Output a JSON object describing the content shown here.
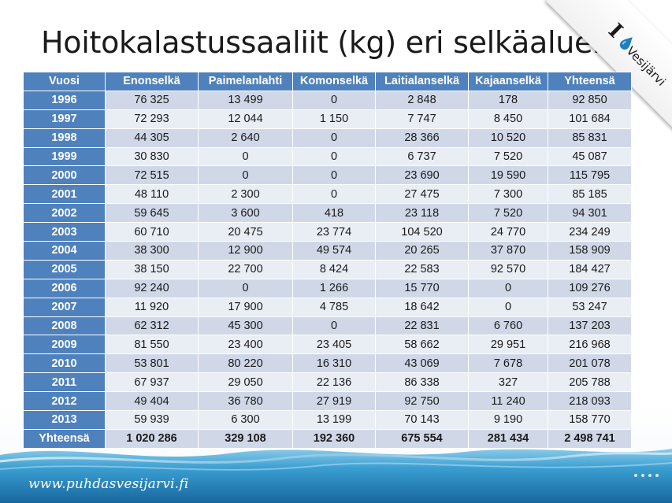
{
  "title": "Hoitokalastussaaliit (kg) eri selkäalueilla",
  "logo": {
    "letter": "I",
    "text": "Vesijärvi",
    "icon": "water-drop-heart-icon"
  },
  "table": {
    "headers": [
      "Vuosi",
      "Enonselkä",
      "Paimelanlahti",
      "Komonselkä",
      "Laitialanselkä",
      "Kajaanselkä",
      "Yhteensä"
    ],
    "rows": [
      {
        "year": "1996",
        "values": [
          "76 325",
          "13 499",
          "0",
          "2 848",
          "178",
          "92 850"
        ]
      },
      {
        "year": "1997",
        "values": [
          "72 293",
          "12 044",
          "1 150",
          "7 747",
          "8 450",
          "101 684"
        ]
      },
      {
        "year": "1998",
        "values": [
          "44 305",
          "2 640",
          "0",
          "28 366",
          "10 520",
          "85 831"
        ]
      },
      {
        "year": "1999",
        "values": [
          "30 830",
          "0",
          "0",
          "6 737",
          "7 520",
          "45 087"
        ]
      },
      {
        "year": "2000",
        "values": [
          "72 515",
          "0",
          "0",
          "23 690",
          "19 590",
          "115 795"
        ]
      },
      {
        "year": "2001",
        "values": [
          "48 110",
          "2 300",
          "0",
          "27 475",
          "7 300",
          "85 185"
        ]
      },
      {
        "year": "2002",
        "values": [
          "59 645",
          "3 600",
          "418",
          "23 118",
          "7 520",
          "94 301"
        ]
      },
      {
        "year": "2003",
        "values": [
          "60 710",
          "20 475",
          "23 774",
          "104 520",
          "24 770",
          "234 249"
        ]
      },
      {
        "year": "2004",
        "values": [
          "38 300",
          "12 900",
          "49 574",
          "20 265",
          "37 870",
          "158 909"
        ]
      },
      {
        "year": "2005",
        "values": [
          "38 150",
          "22 700",
          "8 424",
          "22 583",
          "92 570",
          "184 427"
        ]
      },
      {
        "year": "2006",
        "values": [
          "92 240",
          "0",
          "1 266",
          "15 770",
          "0",
          "109 276"
        ]
      },
      {
        "year": "2007",
        "values": [
          "11 920",
          "17 900",
          "4 785",
          "18 642",
          "0",
          "53 247"
        ]
      },
      {
        "year": "2008",
        "values": [
          "62 312",
          "45 300",
          "0",
          "22 831",
          "6 760",
          "137 203"
        ]
      },
      {
        "year": "2009",
        "values": [
          "81 550",
          "23 400",
          "23 405",
          "58 662",
          "29 951",
          "216 968"
        ]
      },
      {
        "year": "2010",
        "values": [
          "53 801",
          "80 220",
          "16 310",
          "43 069",
          "7 678",
          "201 078"
        ]
      },
      {
        "year": "2011",
        "values": [
          "67 937",
          "29 050",
          "22 136",
          "86 338",
          "327",
          "205 788"
        ]
      },
      {
        "year": "2012",
        "values": [
          "49 404",
          "36 780",
          "27 919",
          "92 750",
          "11 240",
          "218 093"
        ]
      },
      {
        "year": "2013",
        "values": [
          "59 939",
          "6 300",
          "13 199",
          "70 143",
          "9 190",
          "158 770"
        ]
      }
    ],
    "total": {
      "label": "Yhteensä",
      "values": [
        "1 020 286",
        "329 108",
        "192 360",
        "675 554",
        "281 434",
        "2 498 741"
      ]
    }
  },
  "footer": {
    "url": "www.puhdasvesijarvi.fi"
  },
  "colors": {
    "header_blue": "#4f81bd",
    "row_band_dark": "#d0d8e8",
    "row_band_light": "#e9edf4",
    "water": "#2f8fc2"
  }
}
